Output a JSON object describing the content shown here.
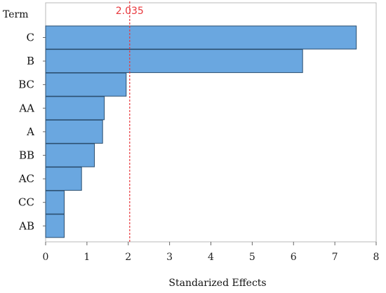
{
  "chart_data": {
    "type": "bar",
    "orientation": "horizontal",
    "title": "",
    "xlabel": "Standarized Effects",
    "ylabel": "Term",
    "xlim": [
      0,
      8
    ],
    "x_ticks": [
      0,
      1,
      2,
      3,
      4,
      5,
      6,
      7,
      8
    ],
    "categories": [
      "C",
      "B",
      "BC",
      "AA",
      "A",
      "BB",
      "AC",
      "CC",
      "AB"
    ],
    "values": [
      7.52,
      6.22,
      1.95,
      1.42,
      1.38,
      1.18,
      0.87,
      0.45,
      0.45
    ],
    "reference_line": {
      "value": 2.035,
      "label": "2.035",
      "color": "#e8383d"
    },
    "bar_color": "#6aa7e0",
    "bar_edge_color": "#2c4f70",
    "grid": false,
    "legend": "none"
  }
}
